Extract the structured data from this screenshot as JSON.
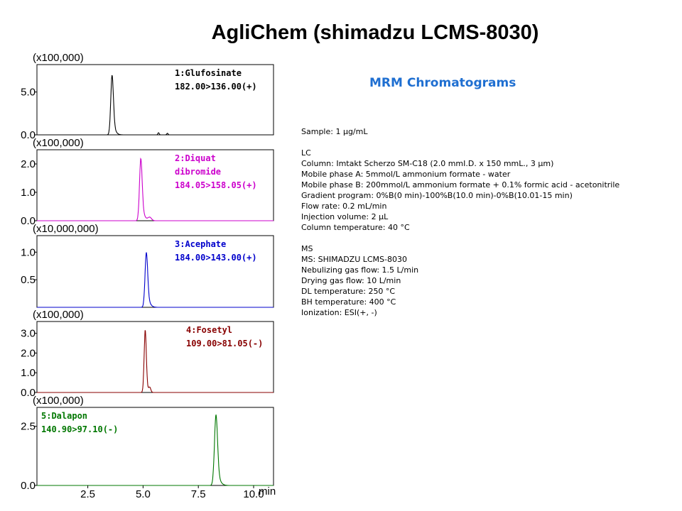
{
  "title": "AgliChem (shimadzu LCMS-8030)",
  "subtitle": "MRM Chromatograms",
  "method_lines": [
    "Sample: 1 µg/mL",
    "",
    "LC",
    "Column: Imtakt Scherzo SM-C18 (2.0 mmI.D. x 150 mmL., 3 µm)",
    "Mobile phase A: 5mmol/L ammonium formate - water",
    "Mobile phase B: 200mmol/L ammonium formate + 0.1% formic acid - acetonitrile",
    "Gradient program: 0%B(0 min)-100%B(10.0 min)-0%B(10.01-15 min)",
    "Flow rate: 0.2 mL/min",
    "Injection volume: 2 µL",
    "Column temperature: 40 °C",
    "",
    "MS",
    "MS: SHIMADZU LCMS-8030",
    "Nebulizing gas flow: 1.5 L/min",
    "Drying gas flow: 10 L/min",
    "DL temperature: 250 °C",
    "BH temperature: 400 °C",
    "Ionization: ESI(+, -)"
  ],
  "chart_data": {
    "type": "line",
    "xlabel": "min",
    "xlim": [
      0.2,
      10.9
    ],
    "xticks": [
      "2.5",
      "5.0",
      "7.5",
      "10.0"
    ],
    "xtick_values": [
      2.5,
      5.0,
      7.5,
      10.0
    ],
    "panels": [
      {
        "name": "1:Glufosinate",
        "transition": "182.00>136.00(+)",
        "scale": "(x100,000)",
        "color": "#000000",
        "ylim": [
          0,
          8.2
        ],
        "yticks": [
          "0.0",
          "5.0"
        ],
        "ytick_values": [
          0,
          5.0
        ],
        "label_align": "right",
        "peak": {
          "rt": 3.6,
          "height": 7.0,
          "sigma": 0.06,
          "tail": 0.18
        },
        "minor_peaks": [
          {
            "rt": 5.7,
            "height": 0.25,
            "sigma": 0.03
          },
          {
            "rt": 6.1,
            "height": 0.18,
            "sigma": 0.03
          }
        ]
      },
      {
        "name": "2:Diquat dibromide",
        "name_lines": [
          "2:Diquat",
          "dibromide"
        ],
        "transition": "184.05>158.05(+)",
        "scale": "(x100,000)",
        "color": "#cc00cc",
        "ylim": [
          0,
          2.5
        ],
        "yticks": [
          "0.0",
          "1.0",
          "2.0"
        ],
        "ytick_values": [
          0,
          1.0,
          2.0
        ],
        "label_align": "right",
        "peak": {
          "rt": 4.9,
          "height": 2.2,
          "sigma": 0.06,
          "tail": 0.25
        },
        "minor_peaks": [
          {
            "rt": 5.3,
            "height": 0.12,
            "sigma": 0.08
          }
        ]
      },
      {
        "name": "3:Acephate",
        "transition": "184.00>143.00(+)",
        "scale": "(x10,000,000)",
        "color": "#0000cc",
        "ylim": [
          0,
          1.3
        ],
        "yticks": [
          "0.5",
          "1.0"
        ],
        "ytick_values": [
          0.5,
          1.0
        ],
        "label_align": "right",
        "peak": {
          "rt": 5.15,
          "height": 1.0,
          "sigma": 0.06,
          "tail": 0.22
        },
        "minor_peaks": []
      },
      {
        "name": "4:Fosetyl",
        "transition": "109.00>81.05(-)",
        "scale": "(x100,000)",
        "color": "#880000",
        "ylim": [
          0,
          3.6
        ],
        "yticks": [
          "0.0",
          "1.0",
          "2.0",
          "3.0"
        ],
        "ytick_values": [
          0,
          1.0,
          2.0,
          3.0
        ],
        "label_align": "right",
        "peak": {
          "rt": 5.1,
          "height": 3.2,
          "sigma": 0.05,
          "tail": 0.08
        },
        "minor_peaks": [
          {
            "rt": 5.3,
            "height": 0.25,
            "sigma": 0.05
          }
        ]
      },
      {
        "name": "5:Dalapon",
        "transition": "140.90>97.10(-)",
        "scale": "(x100,000)",
        "color": "#007700",
        "ylim": [
          0,
          3.3
        ],
        "yticks": [
          "0.0",
          "2.5"
        ],
        "ytick_values": [
          0,
          2.5
        ],
        "label_align": "left",
        "peak": {
          "rt": 8.3,
          "height": 3.0,
          "sigma": 0.07,
          "tail": 0.22
        },
        "minor_peaks": []
      }
    ]
  }
}
